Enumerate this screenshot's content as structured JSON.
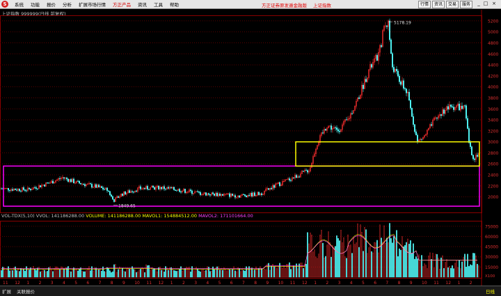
{
  "menubar": {
    "items": [
      "系统",
      "功能",
      "报价",
      "分析",
      "扩展市场行情",
      "方正产品",
      "资讯",
      "工具",
      "帮助"
    ],
    "ad_text": "方正证券原发遁金融版",
    "ad_text2": "上证指数",
    "right_buttons": [
      "行情",
      "资讯",
      "交易",
      "服务"
    ]
  },
  "chart_header": {
    "title": "上证指数 999999(日线 前复权)"
  },
  "chart_data": {
    "type": "candlestick",
    "main_y_ticks": [
      2000,
      2200,
      2400,
      2600,
      2800,
      3000,
      3200,
      3400,
      3600,
      3800,
      4000,
      4200,
      4400,
      4600,
      4800,
      5000,
      5200
    ],
    "max_label": "5178.19",
    "min_label": "1849.65",
    "vol_y_ticks": [
      "15000",
      "30000",
      "45000",
      "60000",
      "75000"
    ],
    "vol_unit": "X100",
    "x_month_labels": [
      "11",
      "12",
      "1",
      "2",
      "3",
      "4",
      "5",
      "6",
      "7",
      "8",
      "9",
      "10",
      "11",
      "12",
      "1",
      "2",
      "3",
      "4",
      "5",
      "6",
      "7",
      "8",
      "9",
      "10",
      "11",
      "12",
      "1",
      "2",
      "3",
      "4",
      "5",
      "6",
      "7",
      "8",
      "9",
      "10",
      "11",
      "12",
      "1",
      "2"
    ],
    "highlight_boxes": [
      {
        "color": "#ff00ff",
        "y_range": [
          1830,
          2560
        ]
      },
      {
        "color": "#ffff00",
        "y_range": [
          2560,
          3000
        ]
      }
    ]
  },
  "volume_header": {
    "indicator": "VOL-TDX(5,10)",
    "vvol_label": "VVOL: 141186288.00",
    "volume_label": "VOLUME: 141186288.00",
    "mavol1_label": "MAVOL1: 154884512.00",
    "mavol2_label": "MAVOL2: 171101664.00"
  },
  "bottom": {
    "tab1": "扩展",
    "tab2": "关联报价",
    "period": "日线"
  },
  "colors": {
    "up": "#ff3030",
    "down": "#54ffff",
    "grid": "#5a0000"
  }
}
